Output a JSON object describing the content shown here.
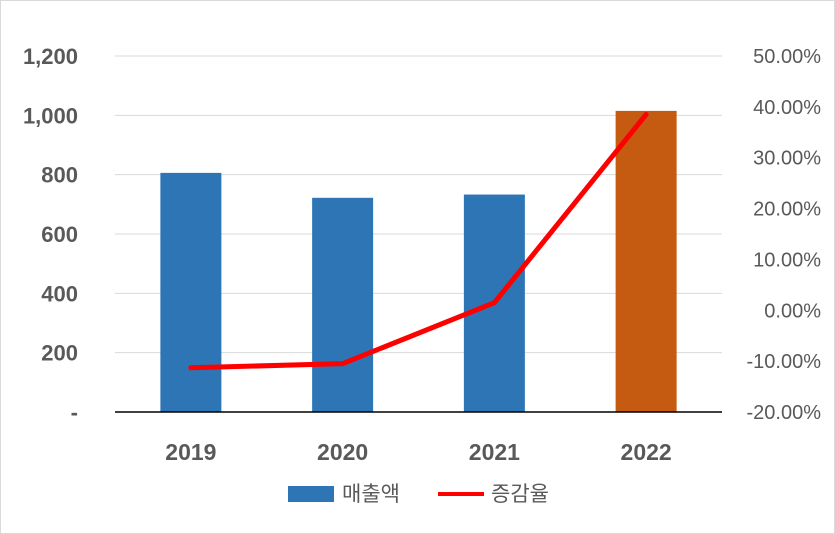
{
  "chart_data": {
    "type": "bar",
    "categories": [
      "2019",
      "2020",
      "2021",
      "2022"
    ],
    "series": [
      {
        "name": "매출액",
        "type": "bar",
        "axis": "left",
        "values": [
          806,
          722,
          733,
          1015
        ],
        "color": "#2e75b6",
        "highlight": {
          "index": 3,
          "color": "#c55a11"
        }
      },
      {
        "name": "증감율",
        "type": "line",
        "axis": "right",
        "values": [
          -11.3,
          -10.5,
          1.5,
          38.5
        ],
        "unit": "%",
        "color": "#ff0000"
      }
    ],
    "y_left": {
      "ylim": [
        0,
        1200
      ],
      "ticks": [
        0,
        200,
        400,
        600,
        800,
        1000,
        1200
      ],
      "tick_labels": [
        "-",
        "200",
        "400",
        "600",
        "800",
        "1,000",
        "1,200"
      ]
    },
    "y_right": {
      "ylim": [
        -20,
        50
      ],
      "ticks": [
        -20,
        -10,
        0,
        10,
        20,
        30,
        40,
        50
      ],
      "tick_labels": [
        "-20.00%",
        "-10.00%",
        "0.00%",
        "10.00%",
        "20.00%",
        "30.00%",
        "40.00%",
        "50.00%"
      ]
    },
    "grid": true,
    "legend_position": "bottom",
    "title": "",
    "xlabel": "",
    "ylabel": ""
  }
}
